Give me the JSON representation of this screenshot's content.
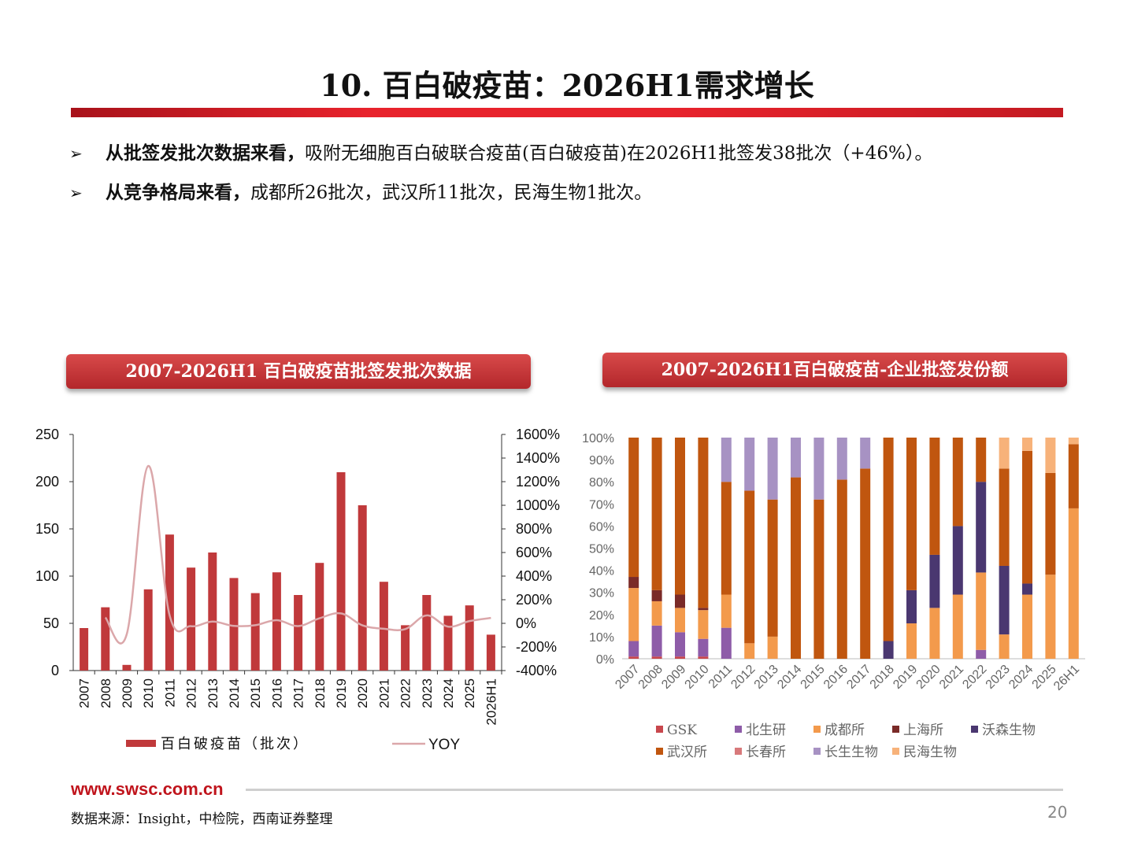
{
  "page": {
    "title": "10. 百白破疫苗：2026H1需求增长",
    "bullets": [
      {
        "bold": "从批签发批次数据来看，",
        "text": "吸附无细胞百白破联合疫苗(百白破疫苗)在2026H1批签发38批次（+46%）。"
      },
      {
        "bold": "从竞争格局来看，",
        "text": "成都所26批次，武汉所11批次，民海生物1批次。"
      }
    ],
    "bullet_mark": "➢",
    "panel1_title": "2007-2026H1 百白破疫苗批签发批次数据",
    "panel2_title": "2007-2026H1百白破疫苗-企业批签发份额",
    "footer_url": "www.swsc.com.cn",
    "source": "数据来源：Insight，中检院，西南证券整理",
    "page_number": "20"
  },
  "chart_data": [
    {
      "type": "bar",
      "categories": [
        "2007",
        "2008",
        "2009",
        "2010",
        "2011",
        "2012",
        "2013",
        "2014",
        "2015",
        "2016",
        "2017",
        "2018",
        "2019",
        "2020",
        "2021",
        "2022",
        "2023",
        "2024",
        "2025",
        "2026H1"
      ],
      "series": [
        {
          "name": "百白破疫苗（批次）",
          "axis": "left",
          "color": "#c0393b",
          "values": [
            45,
            67,
            6,
            86,
            144,
            109,
            125,
            98,
            82,
            104,
            80,
            114,
            210,
            175,
            94,
            48,
            80,
            58,
            69,
            38
          ]
        },
        {
          "name": "YOY",
          "axis": "right",
          "type": "line",
          "color": "#dba7aa",
          "values": [
            null,
            0.49,
            -0.91,
            13.33,
            0.67,
            -0.24,
            0.15,
            -0.22,
            -0.16,
            0.27,
            -0.23,
            0.43,
            0.84,
            -0.17,
            -0.46,
            -0.49,
            0.67,
            -0.28,
            0.19,
            0.46
          ]
        }
      ],
      "ylim_left": [
        0,
        250
      ],
      "yticks_left": [
        "0",
        "50",
        "100",
        "150",
        "200",
        "250"
      ],
      "ylim_right": [
        -4,
        16
      ],
      "yticks_right": [
        "-400%",
        "-200%",
        "0%",
        "200%",
        "400%",
        "600%",
        "800%",
        "1000%",
        "1200%",
        "1400%",
        "1600%"
      ],
      "legend": [
        "百白破疫苗（批次）",
        "YOY"
      ],
      "legend_position": "bottom"
    },
    {
      "type": "bar",
      "stacked": "percent",
      "categories": [
        "2007",
        "2008",
        "2009",
        "2010",
        "2011",
        "2012",
        "2013",
        "2014",
        "2015",
        "2016",
        "2017",
        "2018",
        "2019",
        "2020",
        "2021",
        "2022",
        "2023",
        "2024",
        "2025",
        "26H1"
      ],
      "series": [
        {
          "name": "GSK",
          "color": "#c8474d",
          "values": [
            1,
            1,
            1,
            1,
            0,
            0,
            0,
            0,
            0,
            0,
            0,
            0,
            0,
            0,
            0,
            0,
            0,
            0,
            0,
            0
          ]
        },
        {
          "name": "北生研",
          "color": "#8e5ca8",
          "values": [
            7,
            14,
            11,
            8,
            14,
            0,
            0,
            0,
            0,
            0,
            0,
            0,
            0,
            0,
            0,
            4,
            0,
            0,
            0,
            0
          ]
        },
        {
          "name": "成都所",
          "color": "#f39a4c",
          "values": [
            24,
            11,
            11,
            13,
            15,
            7,
            10,
            0,
            0,
            0,
            0,
            0,
            16,
            23,
            29,
            35,
            11,
            29,
            38,
            68
          ]
        },
        {
          "name": "上海所",
          "color": "#7a2a28",
          "values": [
            5,
            5,
            6,
            1,
            0,
            0,
            0,
            0,
            0,
            0,
            0,
            0,
            0,
            0,
            0,
            0,
            0,
            0,
            0,
            0
          ]
        },
        {
          "name": "沃森生物",
          "color": "#4a3770",
          "values": [
            0,
            0,
            0,
            0,
            0,
            0,
            0,
            0,
            0,
            0,
            0,
            8,
            15,
            24,
            31,
            41,
            31,
            5,
            0,
            0
          ]
        },
        {
          "name": "武汉所",
          "color": "#c0560f",
          "values": [
            63,
            69,
            71,
            77,
            51,
            69,
            62,
            82,
            72,
            81,
            86,
            92,
            69,
            53,
            40,
            20,
            44,
            60,
            46,
            29
          ]
        },
        {
          "name": "长春所",
          "color": "#d8797b",
          "values": [
            0,
            0,
            0,
            0,
            0,
            0,
            0,
            0,
            0,
            0,
            0,
            0,
            0,
            0,
            0,
            0,
            0,
            0,
            0,
            0
          ]
        },
        {
          "name": "长生生物",
          "color": "#a792c3",
          "values": [
            0,
            0,
            0,
            0,
            20,
            24,
            28,
            18,
            28,
            19,
            14,
            0,
            0,
            0,
            0,
            0,
            0,
            0,
            0,
            0
          ]
        },
        {
          "name": "民海生物",
          "color": "#f7b27a",
          "values": [
            0,
            0,
            0,
            0,
            0,
            0,
            0,
            0,
            0,
            0,
            0,
            0,
            0,
            0,
            0,
            0,
            14,
            6,
            16,
            3
          ]
        }
      ],
      "ylim": [
        0,
        100
      ],
      "yticks": [
        "0%",
        "10%",
        "20%",
        "30%",
        "40%",
        "50%",
        "60%",
        "70%",
        "80%",
        "90%",
        "100%"
      ],
      "legend_position": "bottom"
    }
  ]
}
